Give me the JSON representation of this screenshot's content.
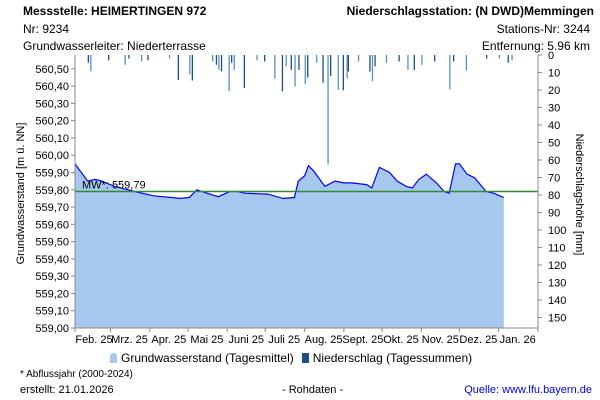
{
  "header": {
    "messstelle": "Messstelle: HEIMERTINGEN 972",
    "nr": "Nr: 9234",
    "grundwasserleiter": "Grundwasserleiter:   Niederterrasse",
    "station": "Niederschlagsstation: (N DWD)Memmingen",
    "station_nr": "Stations-Nr: 3244",
    "entfernung": "Entfernung: 5.96 km"
  },
  "footer": {
    "note": "* Abflussjahr (2000-2024)",
    "erstellt": "erstellt:  21.01.2026",
    "rohdaten": "- Rohdaten -",
    "quelle": "Quelle: www.lfu.bayern.de"
  },
  "colors": {
    "area": "#a6c8ee",
    "line": "#0000ff",
    "bar_dark": "#1b4f87",
    "bar_light": "#5b8fc4",
    "mean": "#2e8b2e"
  },
  "chart_data": {
    "type": "area",
    "ylabel": "Grundwasserstand [m ü. NN]",
    "y2label": "Niederschlagshöhe [mm]",
    "ylim": [
      559.0,
      560.58
    ],
    "y2lim": [
      0,
      156
    ],
    "y2_inverted": true,
    "yticks": [
      "559,00",
      "559,10",
      "559,20",
      "559,30",
      "559,40",
      "559,50",
      "559,60",
      "559,70",
      "559,80",
      "559,90",
      "560,00",
      "560,10",
      "560,20",
      "560,30",
      "560,40",
      "560,50"
    ],
    "y2ticks": [
      "0",
      "10",
      "20",
      "30",
      "40",
      "50",
      "60",
      "70",
      "80",
      "90",
      "100",
      "110",
      "120",
      "130",
      "140",
      "150"
    ],
    "xticks": [
      "Feb. 25",
      "Mrz. 25",
      "Apr. 25",
      "Mai 25",
      "Juni 25",
      "Juli 25",
      "Aug. 25",
      "Sept. 25",
      "Okt. 25",
      "Nov. 25",
      "Dez. 25",
      "Jan. 26"
    ],
    "xtick_days": [
      0,
      28,
      59,
      89,
      120,
      150,
      181,
      212,
      242,
      273,
      303,
      334
    ],
    "xlim_days": [
      0,
      365
    ],
    "mean": {
      "value": 559.79,
      "label": "MW*: 559,79"
    },
    "legend": [
      "Grundwasserstand (Tagesmittel)",
      "Niederschlag (Tagessummen)"
    ],
    "groundwater": {
      "name": "Grundwasserstand (Tagesmittel)",
      "day": [
        0,
        10,
        16,
        21,
        31,
        47,
        62,
        83,
        90,
        96,
        104,
        113,
        122,
        128,
        134,
        152,
        164,
        173,
        176,
        181,
        184,
        188,
        197,
        205,
        212,
        218,
        230,
        234,
        240,
        248,
        254,
        261,
        266,
        271,
        277,
        285,
        291,
        295,
        300,
        303,
        309,
        315,
        324,
        330,
        338
      ],
      "value": [
        559.95,
        559.85,
        559.86,
        559.85,
        559.82,
        559.79,
        559.765,
        559.75,
        559.755,
        559.8,
        559.78,
        559.76,
        559.79,
        559.79,
        559.78,
        559.775,
        559.75,
        559.755,
        559.85,
        559.88,
        559.94,
        559.91,
        559.82,
        559.85,
        559.84,
        559.84,
        559.83,
        559.81,
        559.93,
        559.9,
        559.85,
        559.82,
        559.81,
        559.86,
        559.89,
        559.84,
        559.79,
        559.78,
        559.95,
        559.95,
        559.89,
        559.87,
        559.79,
        559.78,
        559.755
      ]
    },
    "precipitation": {
      "name": "Niederschlag (Tagessummen)",
      "day": [
        10,
        12,
        26,
        39,
        42,
        52,
        57,
        74,
        81,
        90,
        92,
        108,
        111,
        113,
        115,
        121,
        123,
        125,
        133,
        143,
        149,
        157,
        163,
        166,
        170,
        173,
        176,
        181,
        183,
        190,
        195,
        199,
        201,
        207,
        211,
        214,
        215,
        223,
        232,
        234,
        236,
        245,
        255,
        262,
        267,
        273,
        283,
        295,
        298,
        308,
        324,
        334,
        341,
        344
      ],
      "mm": [
        4.4,
        9.3,
        3,
        5.6,
        2,
        3.7,
        3,
        2,
        14.3,
        11,
        14.6,
        3.7,
        5.6,
        8.5,
        9.4,
        20.7,
        4.4,
        8.5,
        18.8,
        3,
        3.7,
        13.5,
        20.7,
        6.5,
        8.5,
        18,
        8.5,
        16.7,
        12.9,
        4.4,
        15.8,
        62.5,
        12,
        19.9,
        20.2,
        13.3,
        9.4,
        3.7,
        9.4,
        15,
        6.5,
        4.4,
        3.7,
        8.5,
        8.5,
        5.6,
        3.7,
        19.6,
        3.7,
        8.9,
        2,
        2,
        4.4,
        3
      ]
    }
  }
}
